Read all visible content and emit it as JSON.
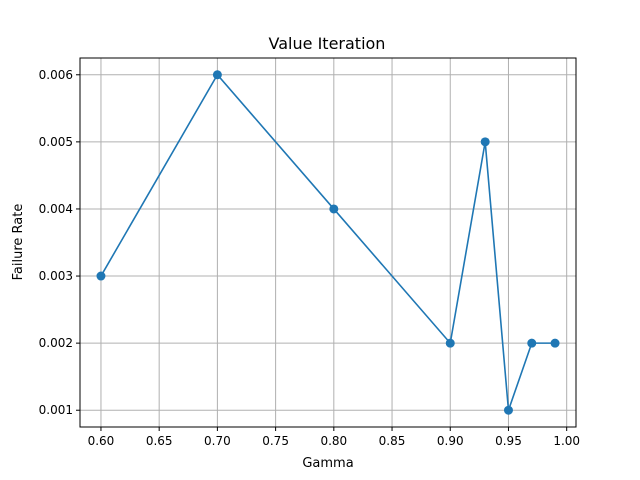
{
  "chart_data": {
    "type": "line",
    "title": "Value Iteration",
    "xlabel": "Gamma",
    "ylabel": "Failure Rate",
    "x": [
      0.6,
      0.7,
      0.8,
      0.9,
      0.93,
      0.95,
      0.97,
      0.99
    ],
    "series": [
      {
        "values": [
          0.003,
          0.006,
          0.004,
          0.002,
          0.005,
          0.001,
          0.002,
          0.002
        ]
      }
    ],
    "xlim": [
      0.582,
      1.008
    ],
    "ylim": [
      0.00075,
      0.00625
    ],
    "xticks": [
      "0.60",
      "0.65",
      "0.70",
      "0.75",
      "0.80",
      "0.85",
      "0.90",
      "0.95",
      "1.00"
    ],
    "yticks": [
      "0.001",
      "0.002",
      "0.003",
      "0.004",
      "0.005",
      "0.006"
    ],
    "marker": "circle",
    "grid": true,
    "legend": "none"
  },
  "colors": {
    "series": "#1f77b4",
    "grid": "#b0b0b0",
    "axes": "#000000"
  }
}
